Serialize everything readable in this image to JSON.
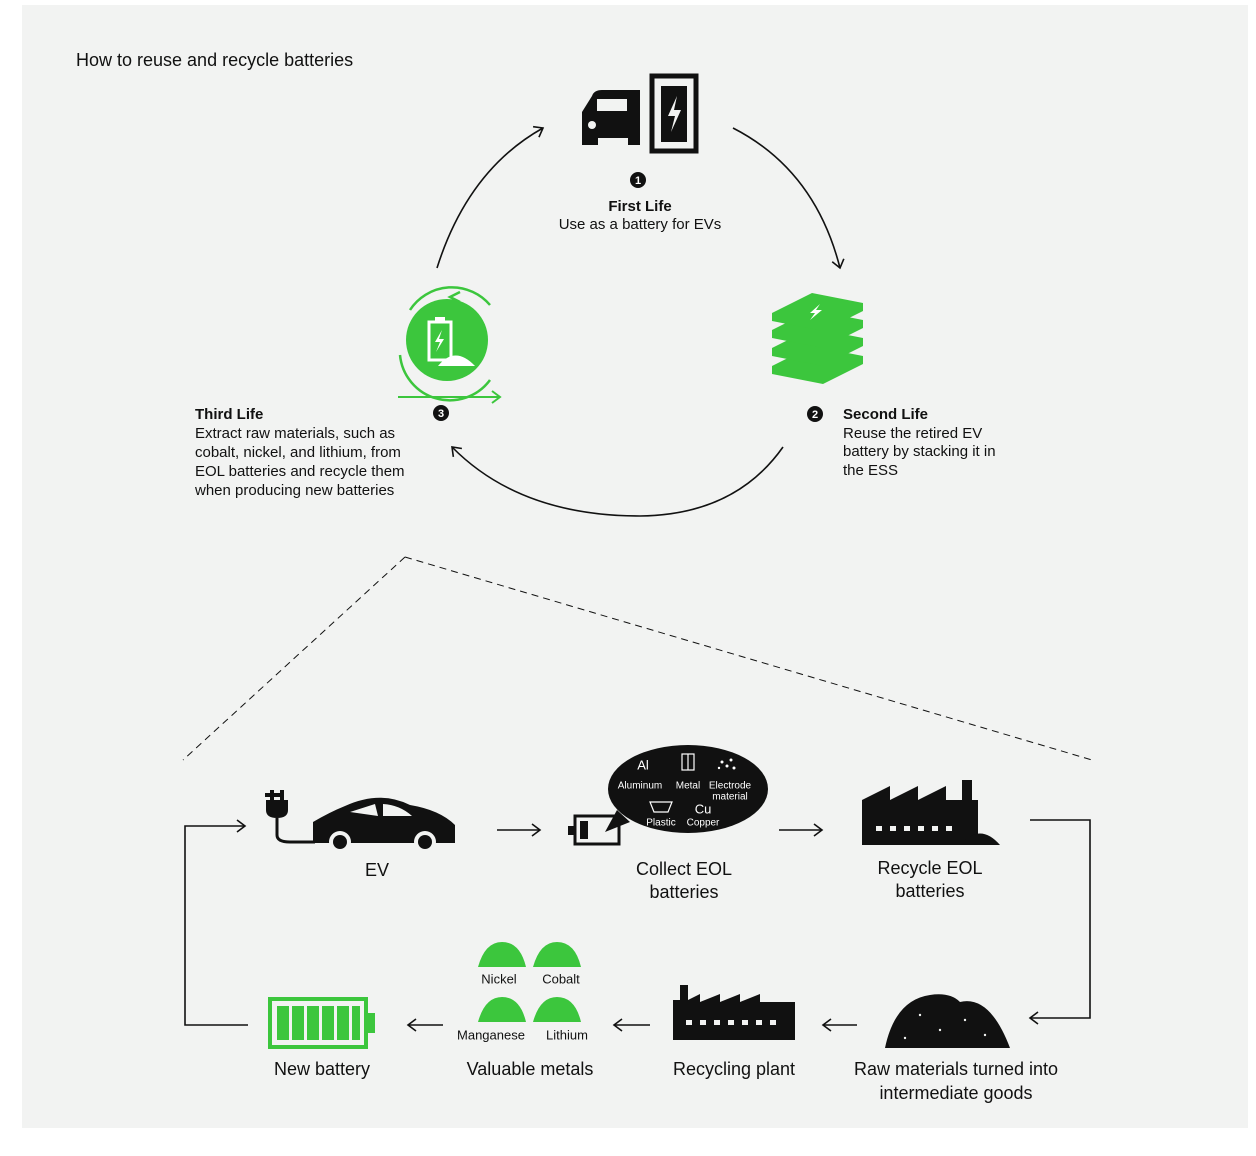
{
  "title": "How to reuse and recycle batteries",
  "lifecycle": [
    {
      "number": "1",
      "name": "First Life",
      "description": [
        "Use as a battery for EVs"
      ]
    },
    {
      "number": "2",
      "name": "Second Life",
      "description": [
        "Reuse the retired EV",
        "battery by stacking it in",
        "the ESS"
      ]
    },
    {
      "number": "3",
      "name": "Third Life",
      "description": [
        "Extract raw materials, such as",
        "cobalt, nickel, and lithium, from",
        "EOL batteries and recycle them",
        "when producing new batteries"
      ]
    }
  ],
  "materials": [
    {
      "symbol": "Al",
      "name": [
        "Aluminum"
      ]
    },
    {
      "name": [
        "Metal"
      ]
    },
    {
      "name": [
        "Electrode",
        "material"
      ]
    },
    {
      "name": [
        "Plastic"
      ]
    },
    {
      "symbol": "Cu",
      "name": [
        "Copper"
      ]
    }
  ],
  "process": [
    {
      "label": [
        "EV"
      ]
    },
    {
      "label": [
        "Collect EOL",
        "batteries"
      ]
    },
    {
      "label": [
        "Recycle EOL",
        "batteries"
      ]
    },
    {
      "label": [
        "Raw materials turned into",
        "intermediate goods"
      ]
    },
    {
      "label": [
        "Recycling plant"
      ]
    },
    {
      "label": [
        "Valuable metals"
      ]
    },
    {
      "label": [
        "New battery"
      ]
    }
  ],
  "metals": [
    "Nickel",
    "Cobalt",
    "Manganese",
    "Lithium"
  ]
}
